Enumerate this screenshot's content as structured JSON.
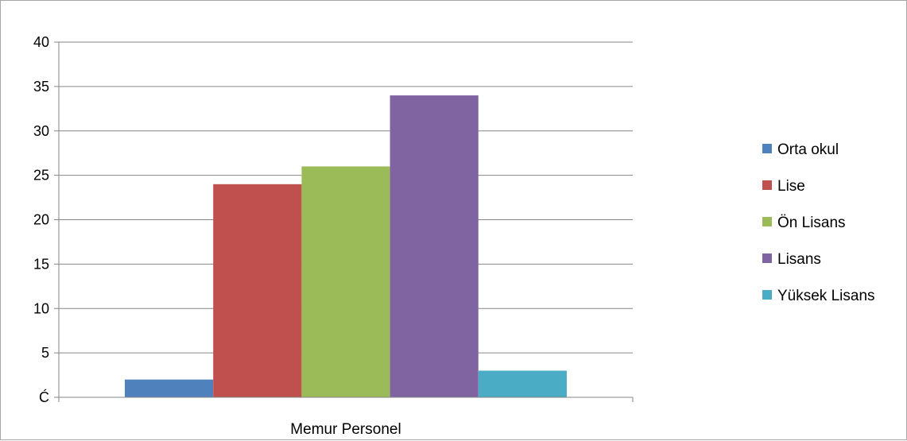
{
  "chart_data": {
    "type": "bar",
    "categories": [
      "Memur Personel"
    ],
    "series": [
      {
        "name": "Orta okul",
        "values": [
          2
        ],
        "color": "#4f81bd"
      },
      {
        "name": "Lise",
        "values": [
          24
        ],
        "color": "#c0504d"
      },
      {
        "name": "Ön Lisans",
        "values": [
          26
        ],
        "color": "#9bbb59"
      },
      {
        "name": "Lisans",
        "values": [
          34
        ],
        "color": "#8064a2"
      },
      {
        "name": "Yüksek Lisans",
        "values": [
          3
        ],
        "color": "#4bacc6"
      }
    ],
    "yticks": [
      "Ć",
      "5",
      "10",
      "15",
      "20",
      "25",
      "30",
      "35",
      "40"
    ],
    "ylim": [
      0,
      40
    ],
    "title": "",
    "xlabel": "",
    "ylabel": "",
    "grid": true,
    "legend_position": "right",
    "colors": {
      "gridline": "#868686",
      "axis": "#868686",
      "border": "#a6a6a6"
    }
  }
}
